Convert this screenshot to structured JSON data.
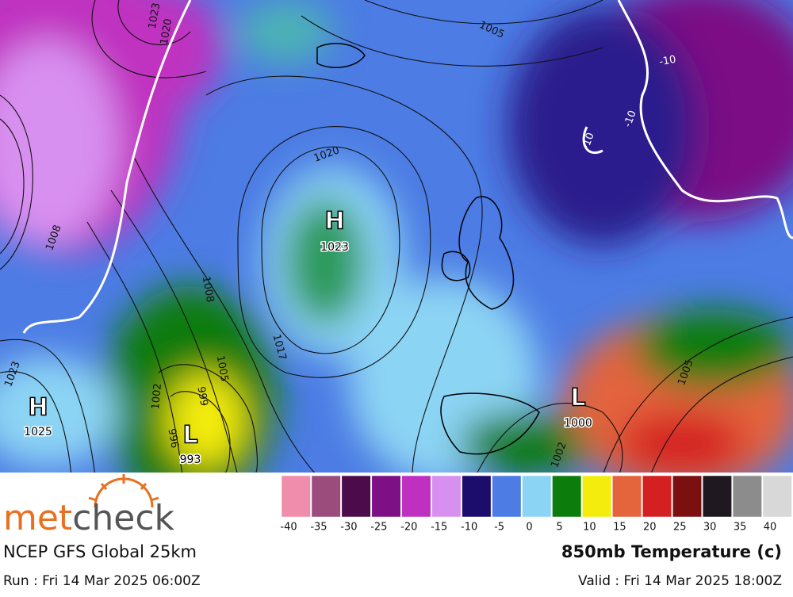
{
  "map": {
    "pressure_centers": [
      {
        "symbol": "H",
        "value": "1023"
      },
      {
        "symbol": "H",
        "value": "1025"
      },
      {
        "symbol": "L",
        "value": "993"
      },
      {
        "symbol": "L",
        "value": "1000"
      }
    ],
    "contour_labels": [
      "1023",
      "1020",
      "1005",
      "1020",
      "1008",
      "1008",
      "1017",
      "1005",
      "999",
      "1002",
      "996",
      "1002",
      "1005",
      "1023",
      "-10",
      "-10",
      "-10"
    ]
  },
  "legend": {
    "colors": [
      "#f08cac",
      "#9c4c7c",
      "#4c0c4c",
      "#7c1084",
      "#c030c0",
      "#d890f0",
      "#1c0c6c",
      "#4c7ce4",
      "#8cd4f4",
      "#0c7c0c",
      "#f4ec0c",
      "#e4643c",
      "#d42020",
      "#7c1010",
      "#201820",
      "#8c8c8c",
      "#d8d8d8"
    ],
    "labels": [
      "-40",
      "-35",
      "-30",
      "-25",
      "-20",
      "-15",
      "-10",
      "-5",
      "0",
      "5",
      "10",
      "15",
      "20",
      "25",
      "30",
      "35",
      "40"
    ]
  },
  "footer": {
    "logo": [
      "met",
      "check"
    ],
    "model": "NCEP GFS Global 25km",
    "run": "Run : Fri 14 Mar 2025 06:00Z",
    "product": "850mb Temperature (c)",
    "valid": "Valid : Fri 14 Mar 2025 18:00Z"
  }
}
